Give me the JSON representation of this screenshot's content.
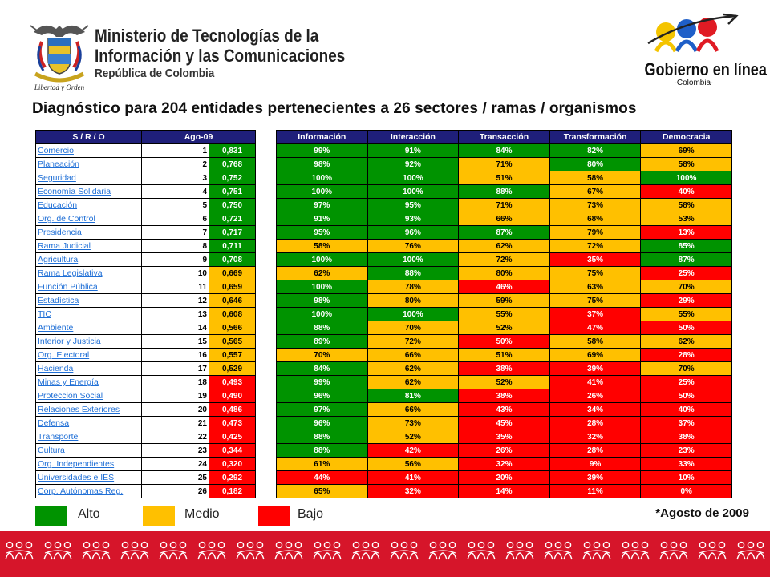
{
  "header": {
    "ministry_line1": "Ministerio de Tecnologías de la",
    "ministry_line2": "Información y las Comunicaciones",
    "ministry_line3": "República de Colombia",
    "motto": "Libertad y Orden",
    "gel_brand": "Gobierno en línea",
    "gel_country": "·Colombia·"
  },
  "title": "Diagnóstico para 204 entidades pertenecientes a 26 sectores / ramas / organismos",
  "rank_table": {
    "headers": [
      "S / R / O",
      "Ago-09"
    ],
    "rows": [
      {
        "name": "Comercio",
        "rank": "1",
        "score": "0,831",
        "level": "g"
      },
      {
        "name": "Planeación",
        "rank": "2",
        "score": "0,768",
        "level": "g"
      },
      {
        "name": "Seguridad",
        "rank": "3",
        "score": "0,752",
        "level": "g"
      },
      {
        "name": "Economía Solidaria",
        "rank": "4",
        "score": "0,751",
        "level": "g"
      },
      {
        "name": "Educación",
        "rank": "5",
        "score": "0,750",
        "level": "g"
      },
      {
        "name": "Org. de Control",
        "rank": "6",
        "score": "0,721",
        "level": "g"
      },
      {
        "name": "Presidencia",
        "rank": "7",
        "score": "0,717",
        "level": "g"
      },
      {
        "name": "Rama Judicial",
        "rank": "8",
        "score": "0,711",
        "level": "g"
      },
      {
        "name": "Agricultura",
        "rank": "9",
        "score": "0,708",
        "level": "g"
      },
      {
        "name": "Rama Legislativa",
        "rank": "10",
        "score": "0,669",
        "level": "y"
      },
      {
        "name": "Función Pública",
        "rank": "11",
        "score": "0,659",
        "level": "y"
      },
      {
        "name": "Estadística",
        "rank": "12",
        "score": "0,646",
        "level": "y"
      },
      {
        "name": "TIC",
        "rank": "13",
        "score": "0,608",
        "level": "y"
      },
      {
        "name": "Ambiente",
        "rank": "14",
        "score": "0,566",
        "level": "y"
      },
      {
        "name": "Interior y Justicia",
        "rank": "15",
        "score": "0,565",
        "level": "y"
      },
      {
        "name": "Org. Electoral",
        "rank": "16",
        "score": "0,557",
        "level": "y"
      },
      {
        "name": "Hacienda",
        "rank": "17",
        "score": "0,529",
        "level": "y"
      },
      {
        "name": "Minas y Energía",
        "rank": "18",
        "score": "0,493",
        "level": "r"
      },
      {
        "name": "Protección Social",
        "rank": "19",
        "score": "0,490",
        "level": "r"
      },
      {
        "name": "Relaciones Exteriores",
        "rank": "20",
        "score": "0,486",
        "level": "r"
      },
      {
        "name": "Defensa",
        "rank": "21",
        "score": "0,473",
        "level": "r"
      },
      {
        "name": "Transporte",
        "rank": "22",
        "score": "0,425",
        "level": "r"
      },
      {
        "name": "Cultura",
        "rank": "23",
        "score": "0,344",
        "level": "r"
      },
      {
        "name": "Org. Independientes",
        "rank": "24",
        "score": "0,320",
        "level": "r"
      },
      {
        "name": "Universidades  e IES",
        "rank": "25",
        "score": "0,292",
        "level": "r"
      },
      {
        "name": "Corp. Autónomas Reg.",
        "rank": "26",
        "score": "0,182",
        "level": "r"
      }
    ]
  },
  "phase_table": {
    "headers": [
      "Información",
      "Interacción",
      "Transacción",
      "Transformación",
      "Democracia"
    ],
    "rows": [
      [
        {
          "v": "99%",
          "c": "g"
        },
        {
          "v": "91%",
          "c": "g"
        },
        {
          "v": "84%",
          "c": "g"
        },
        {
          "v": "82%",
          "c": "g"
        },
        {
          "v": "69%",
          "c": "y"
        }
      ],
      [
        {
          "v": "98%",
          "c": "g"
        },
        {
          "v": "92%",
          "c": "g"
        },
        {
          "v": "71%",
          "c": "y"
        },
        {
          "v": "80%",
          "c": "g"
        },
        {
          "v": "58%",
          "c": "y"
        }
      ],
      [
        {
          "v": "100%",
          "c": "g"
        },
        {
          "v": "100%",
          "c": "g"
        },
        {
          "v": "51%",
          "c": "y"
        },
        {
          "v": "58%",
          "c": "y"
        },
        {
          "v": "100%",
          "c": "g"
        }
      ],
      [
        {
          "v": "100%",
          "c": "g"
        },
        {
          "v": "100%",
          "c": "g"
        },
        {
          "v": "88%",
          "c": "g"
        },
        {
          "v": "67%",
          "c": "y"
        },
        {
          "v": "40%",
          "c": "r"
        }
      ],
      [
        {
          "v": "97%",
          "c": "g"
        },
        {
          "v": "95%",
          "c": "g"
        },
        {
          "v": "71%",
          "c": "y"
        },
        {
          "v": "73%",
          "c": "y"
        },
        {
          "v": "58%",
          "c": "y"
        }
      ],
      [
        {
          "v": "91%",
          "c": "g"
        },
        {
          "v": "93%",
          "c": "g"
        },
        {
          "v": "66%",
          "c": "y"
        },
        {
          "v": "68%",
          "c": "y"
        },
        {
          "v": "53%",
          "c": "y"
        }
      ],
      [
        {
          "v": "95%",
          "c": "g"
        },
        {
          "v": "96%",
          "c": "g"
        },
        {
          "v": "87%",
          "c": "g"
        },
        {
          "v": "79%",
          "c": "y"
        },
        {
          "v": "13%",
          "c": "r"
        }
      ],
      [
        {
          "v": "58%",
          "c": "y"
        },
        {
          "v": "76%",
          "c": "y"
        },
        {
          "v": "62%",
          "c": "y"
        },
        {
          "v": "72%",
          "c": "y"
        },
        {
          "v": "85%",
          "c": "g"
        }
      ],
      [
        {
          "v": "100%",
          "c": "g"
        },
        {
          "v": "100%",
          "c": "g"
        },
        {
          "v": "72%",
          "c": "y"
        },
        {
          "v": "35%",
          "c": "r"
        },
        {
          "v": "87%",
          "c": "g"
        }
      ],
      [
        {
          "v": "62%",
          "c": "y"
        },
        {
          "v": "88%",
          "c": "g"
        },
        {
          "v": "80%",
          "c": "y"
        },
        {
          "v": "75%",
          "c": "y"
        },
        {
          "v": "25%",
          "c": "r"
        }
      ],
      [
        {
          "v": "100%",
          "c": "g"
        },
        {
          "v": "78%",
          "c": "y"
        },
        {
          "v": "46%",
          "c": "r"
        },
        {
          "v": "63%",
          "c": "y"
        },
        {
          "v": "70%",
          "c": "y"
        }
      ],
      [
        {
          "v": "98%",
          "c": "g"
        },
        {
          "v": "80%",
          "c": "y"
        },
        {
          "v": "59%",
          "c": "y"
        },
        {
          "v": "75%",
          "c": "y"
        },
        {
          "v": "29%",
          "c": "r"
        }
      ],
      [
        {
          "v": "100%",
          "c": "g"
        },
        {
          "v": "100%",
          "c": "g"
        },
        {
          "v": "55%",
          "c": "y"
        },
        {
          "v": "37%",
          "c": "r"
        },
        {
          "v": "55%",
          "c": "y"
        }
      ],
      [
        {
          "v": "88%",
          "c": "g"
        },
        {
          "v": "70%",
          "c": "y"
        },
        {
          "v": "52%",
          "c": "y"
        },
        {
          "v": "47%",
          "c": "r"
        },
        {
          "v": "50%",
          "c": "r"
        }
      ],
      [
        {
          "v": "89%",
          "c": "g"
        },
        {
          "v": "72%",
          "c": "y"
        },
        {
          "v": "50%",
          "c": "r"
        },
        {
          "v": "58%",
          "c": "y"
        },
        {
          "v": "62%",
          "c": "y"
        }
      ],
      [
        {
          "v": "70%",
          "c": "y"
        },
        {
          "v": "66%",
          "c": "y"
        },
        {
          "v": "51%",
          "c": "y"
        },
        {
          "v": "69%",
          "c": "y"
        },
        {
          "v": "28%",
          "c": "r"
        }
      ],
      [
        {
          "v": "84%",
          "c": "g"
        },
        {
          "v": "62%",
          "c": "y"
        },
        {
          "v": "38%",
          "c": "r"
        },
        {
          "v": "39%",
          "c": "r"
        },
        {
          "v": "70%",
          "c": "y"
        }
      ],
      [
        {
          "v": "99%",
          "c": "g"
        },
        {
          "v": "62%",
          "c": "y"
        },
        {
          "v": "52%",
          "c": "y"
        },
        {
          "v": "41%",
          "c": "r"
        },
        {
          "v": "25%",
          "c": "r"
        }
      ],
      [
        {
          "v": "96%",
          "c": "g"
        },
        {
          "v": "81%",
          "c": "g"
        },
        {
          "v": "38%",
          "c": "r"
        },
        {
          "v": "26%",
          "c": "r"
        },
        {
          "v": "50%",
          "c": "r"
        }
      ],
      [
        {
          "v": "97%",
          "c": "g"
        },
        {
          "v": "66%",
          "c": "y"
        },
        {
          "v": "43%",
          "c": "r"
        },
        {
          "v": "34%",
          "c": "r"
        },
        {
          "v": "40%",
          "c": "r"
        }
      ],
      [
        {
          "v": "96%",
          "c": "g"
        },
        {
          "v": "73%",
          "c": "y"
        },
        {
          "v": "45%",
          "c": "r"
        },
        {
          "v": "28%",
          "c": "r"
        },
        {
          "v": "37%",
          "c": "r"
        }
      ],
      [
        {
          "v": "88%",
          "c": "g"
        },
        {
          "v": "52%",
          "c": "y"
        },
        {
          "v": "35%",
          "c": "r"
        },
        {
          "v": "32%",
          "c": "r"
        },
        {
          "v": "38%",
          "c": "r"
        }
      ],
      [
        {
          "v": "88%",
          "c": "g"
        },
        {
          "v": "42%",
          "c": "r"
        },
        {
          "v": "26%",
          "c": "r"
        },
        {
          "v": "28%",
          "c": "r"
        },
        {
          "v": "23%",
          "c": "r"
        }
      ],
      [
        {
          "v": "61%",
          "c": "y"
        },
        {
          "v": "56%",
          "c": "y"
        },
        {
          "v": "32%",
          "c": "r"
        },
        {
          "v": "9%",
          "c": "r"
        },
        {
          "v": "33%",
          "c": "r"
        }
      ],
      [
        {
          "v": "44%",
          "c": "r"
        },
        {
          "v": "41%",
          "c": "r"
        },
        {
          "v": "20%",
          "c": "r"
        },
        {
          "v": "39%",
          "c": "r"
        },
        {
          "v": "10%",
          "c": "r"
        }
      ],
      [
        {
          "v": "65%",
          "c": "y"
        },
        {
          "v": "32%",
          "c": "r"
        },
        {
          "v": "14%",
          "c": "r"
        },
        {
          "v": "11%",
          "c": "r"
        },
        {
          "v": "0%",
          "c": "r"
        }
      ]
    ]
  },
  "legend": {
    "alto": "Alto",
    "medio": "Medio",
    "bajo": "Bajo",
    "colors": {
      "alto": "#009300",
      "medio": "#ffc000",
      "bajo": "#ff0000"
    }
  },
  "note": "*Agosto de 2009"
}
